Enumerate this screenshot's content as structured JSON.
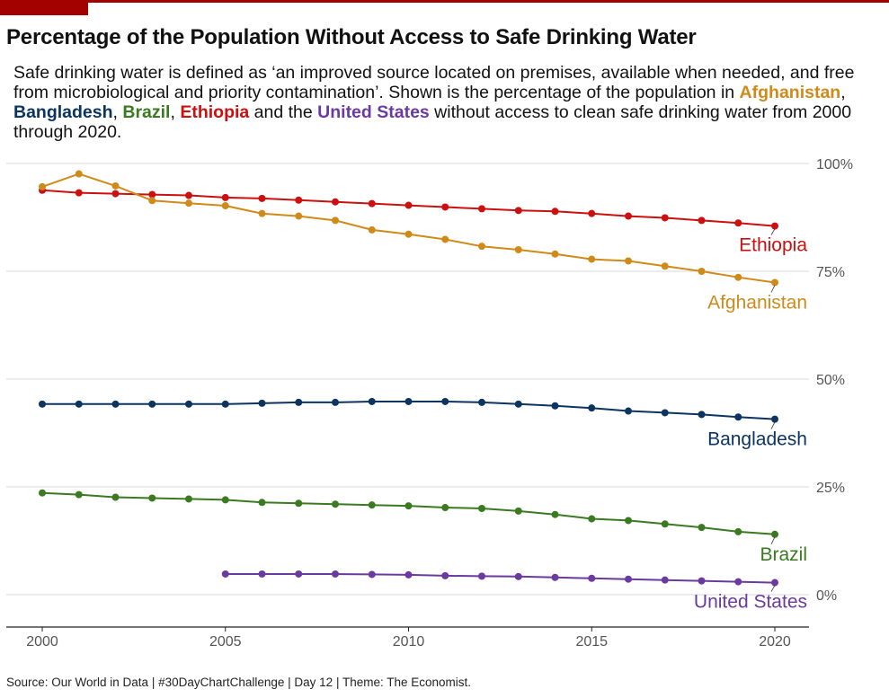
{
  "title": "Percentage of the Population Without Access to Safe Drinking Water",
  "subtitle": {
    "part1": "Safe drinking water is defined as ‘an improved source located on premises, available when needed, and free from microbiological and priority contamination’. Shown is the percentage of the population in ",
    "c1": "Afghanistan",
    "sep1": ", ",
    "c2": "Bangladesh",
    "sep2": ", ",
    "c3": "Brazil",
    "sep3": ", ",
    "c4": "Ethiopia",
    "sep4": " and the ",
    "c5": "United States",
    "part2": " without access to clean safe drinking water from 2000 through 2020."
  },
  "caption": "Source: Our World in Data | #30DayChartChallenge | Day 12 | Theme: The Economist.",
  "colors": {
    "accent": "#a30000",
    "Afghanistan": "#d08a1a",
    "Bangladesh": "#0c3460",
    "Brazil": "#3a7a20",
    "Ethiopia": "#cc0f0f",
    "United States": "#6a3aa0",
    "grid": "#d9d9d9",
    "axis_text": "#555555"
  },
  "chart_data": {
    "type": "line",
    "x_ticks": [
      2000,
      2005,
      2010,
      2015,
      2020
    ],
    "y_ticks": [
      0,
      25,
      50,
      75,
      100
    ],
    "y_tick_labels": [
      "0%",
      "25%",
      "50%",
      "75%",
      "100%"
    ],
    "xlim": [
      2000,
      2020
    ],
    "ylim": [
      0,
      100
    ],
    "grid": "horizontal",
    "y_axis_side": "right",
    "legend": "direct labels at line ends",
    "series": [
      {
        "name": "Ethiopia",
        "x": [
          2000,
          2001,
          2002,
          2003,
          2004,
          2005,
          2006,
          2007,
          2008,
          2009,
          2010,
          2011,
          2012,
          2013,
          2014,
          2015,
          2016,
          2017,
          2018,
          2019,
          2020
        ],
        "values": [
          93.8,
          93.2,
          93.0,
          92.8,
          92.6,
          92.1,
          91.9,
          91.5,
          91.1,
          90.7,
          90.3,
          89.9,
          89.5,
          89.1,
          88.9,
          88.4,
          87.8,
          87.4,
          86.8,
          86.2,
          85.5
        ]
      },
      {
        "name": "Afghanistan",
        "x": [
          2000,
          2001,
          2002,
          2003,
          2004,
          2005,
          2006,
          2007,
          2008,
          2009,
          2010,
          2011,
          2012,
          2013,
          2014,
          2015,
          2016,
          2017,
          2018,
          2019,
          2020
        ],
        "values": [
          94.6,
          97.6,
          94.8,
          91.4,
          90.8,
          90.2,
          88.4,
          87.8,
          86.8,
          84.6,
          83.6,
          82.4,
          80.8,
          80.0,
          79.0,
          77.8,
          77.4,
          76.2,
          75.0,
          73.6,
          72.4
        ]
      },
      {
        "name": "Bangladesh",
        "x": [
          2000,
          2001,
          2002,
          2003,
          2004,
          2005,
          2006,
          2007,
          2008,
          2009,
          2010,
          2011,
          2012,
          2013,
          2014,
          2015,
          2016,
          2017,
          2018,
          2019,
          2020
        ],
        "values": [
          44.2,
          44.2,
          44.2,
          44.2,
          44.2,
          44.2,
          44.4,
          44.6,
          44.6,
          44.8,
          44.8,
          44.8,
          44.6,
          44.2,
          43.8,
          43.3,
          42.6,
          42.2,
          41.8,
          41.2,
          40.7
        ]
      },
      {
        "name": "Brazil",
        "x": [
          2000,
          2001,
          2002,
          2003,
          2004,
          2005,
          2006,
          2007,
          2008,
          2009,
          2010,
          2011,
          2012,
          2013,
          2014,
          2015,
          2016,
          2017,
          2018,
          2019,
          2020
        ],
        "values": [
          23.6,
          23.2,
          22.6,
          22.4,
          22.2,
          22.0,
          21.4,
          21.2,
          21.0,
          20.8,
          20.6,
          20.2,
          20.0,
          19.4,
          18.6,
          17.6,
          17.2,
          16.4,
          15.6,
          14.6,
          14.0
        ]
      },
      {
        "name": "United States",
        "x": [
          2005,
          2006,
          2007,
          2008,
          2009,
          2010,
          2011,
          2012,
          2013,
          2014,
          2015,
          2016,
          2017,
          2018,
          2019,
          2020
        ],
        "values": [
          4.8,
          4.8,
          4.8,
          4.8,
          4.7,
          4.6,
          4.4,
          4.3,
          4.2,
          4.0,
          3.8,
          3.6,
          3.4,
          3.2,
          3.0,
          2.8
        ]
      }
    ]
  }
}
